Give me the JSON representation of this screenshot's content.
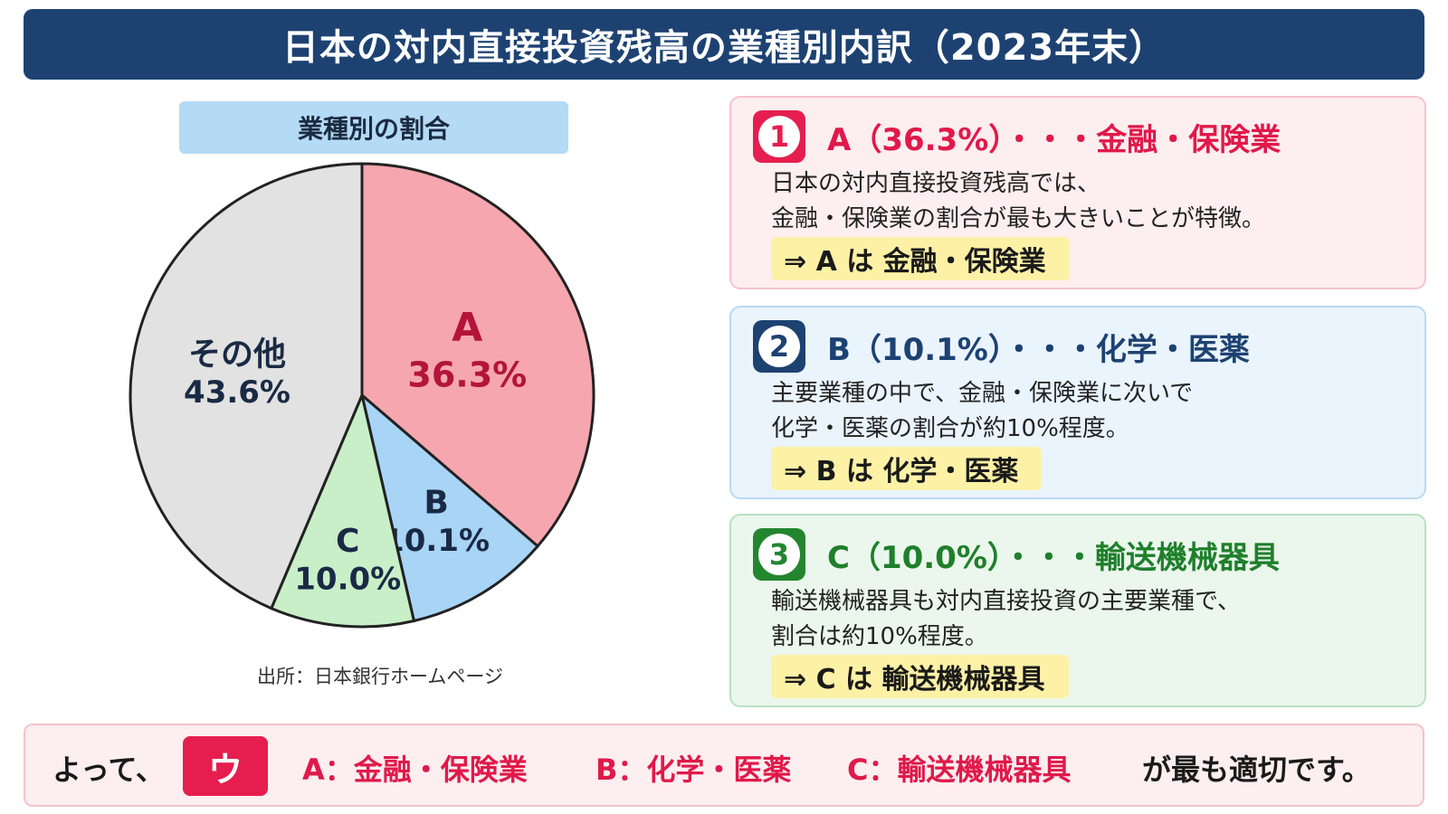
{
  "title": "日本の対内直接投資残高の業種別内訳（2023年末）",
  "pie_heading": "業種別の割合",
  "source": "出所：日本銀行ホームページ",
  "chart_data": {
    "type": "pie",
    "title": "業種別の割合",
    "slices": [
      {
        "label": "A",
        "value": 36.3,
        "value_label": "36.3%",
        "color": "#f6a6ae",
        "text_color": "#b3143a"
      },
      {
        "label": "B",
        "value": 10.1,
        "value_label": "10.1%",
        "color": "#a8d4f6",
        "text_color": "#1a2a44"
      },
      {
        "label": "C",
        "value": 10.0,
        "value_label": "10.0%",
        "color": "#c8efc8",
        "text_color": "#1a2a44"
      },
      {
        "label": "その他",
        "value": 43.6,
        "value_label": "43.6%",
        "color": "#e2e2e2",
        "text_color": "#1a2a44"
      }
    ],
    "start": "12 o'clock",
    "direction": "clockwise"
  },
  "cards": [
    {
      "num": "1",
      "head": "A（36.3%）・・・金融・保険業",
      "lines": [
        "日本の対内直接投資残高では、",
        "金融・保険業の割合が最も大きいことが特徴。"
      ],
      "conclusion": "⇒ A は 金融・保険業"
    },
    {
      "num": "2",
      "head": "B（10.1%）・・・化学・医薬",
      "lines": [
        "主要業種の中で、金融・保険業に次いで",
        "化学・医薬の割合が約10%程度。"
      ],
      "conclusion": "⇒ B は 化学・医薬"
    },
    {
      "num": "3",
      "head": "C（10.0%）・・・輸送機械器具",
      "lines": [
        "輸送機械器具も対内直接投資の主要業種で、",
        "割合は約10%程度。"
      ],
      "conclusion": "⇒ C は 輸送機械器具"
    }
  ],
  "answer": {
    "prefix": "よって、",
    "choice": "ウ",
    "a": "A：金融・保険業",
    "b": "B：化学・医薬",
    "c": "C：輸送機械器具",
    "suffix": "が最も適切です。"
  }
}
